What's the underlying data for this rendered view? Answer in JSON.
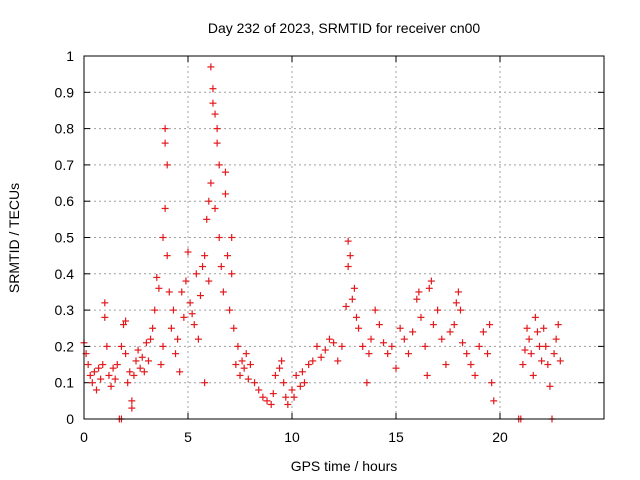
{
  "chart_data": {
    "type": "scatter",
    "title": "Day 232 of 2023, SRMTID for receiver cn00",
    "xlabel": "GPS time / hours",
    "ylabel": "SRMTID / TECUs",
    "xlim": [
      0,
      25
    ],
    "ylim": [
      0,
      1
    ],
    "xticks": [
      0,
      5,
      10,
      15,
      20
    ],
    "yticks": [
      0,
      0.1,
      0.2,
      0.3,
      0.4,
      0.5,
      0.6,
      0.7,
      0.8,
      0.9,
      1
    ],
    "grid": true,
    "marker": "+",
    "series_color": "#e31a1c",
    "series": [
      {
        "name": "SRMTID",
        "points": [
          [
            0.0,
            0.21
          ],
          [
            0.1,
            0.18
          ],
          [
            0.2,
            0.15
          ],
          [
            0.3,
            0.12
          ],
          [
            0.4,
            0.1
          ],
          [
            0.5,
            0.13
          ],
          [
            0.6,
            0.08
          ],
          [
            0.7,
            0.14
          ],
          [
            0.8,
            0.11
          ],
          [
            0.9,
            0.15
          ],
          [
            1.0,
            0.32
          ],
          [
            1.0,
            0.28
          ],
          [
            1.1,
            0.2
          ],
          [
            1.2,
            0.12
          ],
          [
            1.3,
            0.09
          ],
          [
            1.4,
            0.14
          ],
          [
            1.5,
            0.11
          ],
          [
            1.6,
            0.15
          ],
          [
            1.7,
            0.0
          ],
          [
            1.8,
            0.0
          ],
          [
            1.8,
            0.2
          ],
          [
            1.9,
            0.26
          ],
          [
            2.0,
            0.27
          ],
          [
            2.0,
            0.18
          ],
          [
            2.1,
            0.1
          ],
          [
            2.2,
            0.13
          ],
          [
            2.3,
            0.05
          ],
          [
            2.3,
            0.03
          ],
          [
            2.4,
            0.12
          ],
          [
            2.5,
            0.16
          ],
          [
            2.6,
            0.19
          ],
          [
            2.7,
            0.14
          ],
          [
            2.8,
            0.17
          ],
          [
            2.9,
            0.13
          ],
          [
            3.0,
            0.21
          ],
          [
            3.1,
            0.16
          ],
          [
            3.2,
            0.22
          ],
          [
            3.3,
            0.25
          ],
          [
            3.4,
            0.3
          ],
          [
            3.5,
            0.39
          ],
          [
            3.6,
            0.36
          ],
          [
            3.7,
            0.15
          ],
          [
            3.8,
            0.2
          ],
          [
            3.8,
            0.5
          ],
          [
            3.9,
            0.58
          ],
          [
            3.9,
            0.8
          ],
          [
            3.9,
            0.76
          ],
          [
            4.0,
            0.7
          ],
          [
            4.0,
            0.45
          ],
          [
            4.1,
            0.35
          ],
          [
            4.2,
            0.25
          ],
          [
            4.3,
            0.3
          ],
          [
            4.4,
            0.18
          ],
          [
            4.5,
            0.22
          ],
          [
            4.6,
            0.13
          ],
          [
            4.7,
            0.35
          ],
          [
            4.8,
            0.28
          ],
          [
            4.9,
            0.38
          ],
          [
            5.0,
            0.46
          ],
          [
            5.1,
            0.32
          ],
          [
            5.2,
            0.29
          ],
          [
            5.3,
            0.26
          ],
          [
            5.4,
            0.4
          ],
          [
            5.5,
            0.22
          ],
          [
            5.6,
            0.34
          ],
          [
            5.7,
            0.42
          ],
          [
            5.8,
            0.1
          ],
          [
            5.8,
            0.45
          ],
          [
            5.9,
            0.55
          ],
          [
            6.0,
            0.6
          ],
          [
            6.0,
            0.38
          ],
          [
            6.1,
            0.65
          ],
          [
            6.1,
            0.97
          ],
          [
            6.2,
            0.91
          ],
          [
            6.2,
            0.87
          ],
          [
            6.3,
            0.84
          ],
          [
            6.3,
            0.58
          ],
          [
            6.4,
            0.8
          ],
          [
            6.4,
            0.76
          ],
          [
            6.5,
            0.7
          ],
          [
            6.5,
            0.5
          ],
          [
            6.6,
            0.42
          ],
          [
            6.7,
            0.35
          ],
          [
            6.8,
            0.62
          ],
          [
            6.8,
            0.68
          ],
          [
            6.9,
            0.45
          ],
          [
            7.0,
            0.3
          ],
          [
            7.1,
            0.5
          ],
          [
            7.1,
            0.4
          ],
          [
            7.2,
            0.25
          ],
          [
            7.3,
            0.15
          ],
          [
            7.4,
            0.2
          ],
          [
            7.5,
            0.12
          ],
          [
            7.6,
            0.16
          ],
          [
            7.7,
            0.14
          ],
          [
            7.8,
            0.18
          ],
          [
            7.9,
            0.11
          ],
          [
            8.0,
            0.15
          ],
          [
            8.2,
            0.1
          ],
          [
            8.4,
            0.08
          ],
          [
            8.6,
            0.06
          ],
          [
            8.8,
            0.05
          ],
          [
            9.0,
            0.04
          ],
          [
            9.1,
            0.07
          ],
          [
            9.2,
            0.12
          ],
          [
            9.4,
            0.14
          ],
          [
            9.5,
            0.16
          ],
          [
            9.6,
            0.1
          ],
          [
            9.7,
            0.06
          ],
          [
            9.8,
            0.04
          ],
          [
            10.0,
            0.08
          ],
          [
            10.1,
            0.06
          ],
          [
            10.2,
            0.12
          ],
          [
            10.4,
            0.09
          ],
          [
            10.5,
            0.13
          ],
          [
            10.6,
            0.1
          ],
          [
            10.8,
            0.15
          ],
          [
            11.0,
            0.16
          ],
          [
            11.2,
            0.2
          ],
          [
            11.4,
            0.17
          ],
          [
            11.6,
            0.19
          ],
          [
            11.8,
            0.22
          ],
          [
            12.0,
            0.21
          ],
          [
            12.2,
            0.16
          ],
          [
            12.4,
            0.2
          ],
          [
            12.6,
            0.31
          ],
          [
            12.7,
            0.42
          ],
          [
            12.7,
            0.49
          ],
          [
            12.8,
            0.45
          ],
          [
            12.9,
            0.33
          ],
          [
            13.0,
            0.36
          ],
          [
            13.1,
            0.28
          ],
          [
            13.2,
            0.25
          ],
          [
            13.4,
            0.2
          ],
          [
            13.6,
            0.1
          ],
          [
            13.7,
            0.18
          ],
          [
            13.8,
            0.22
          ],
          [
            14.0,
            0.3
          ],
          [
            14.2,
            0.26
          ],
          [
            14.4,
            0.21
          ],
          [
            14.6,
            0.18
          ],
          [
            14.8,
            0.2
          ],
          [
            15.0,
            0.14
          ],
          [
            15.2,
            0.25
          ],
          [
            15.4,
            0.22
          ],
          [
            15.6,
            0.18
          ],
          [
            15.8,
            0.24
          ],
          [
            16.0,
            0.33
          ],
          [
            16.1,
            0.35
          ],
          [
            16.2,
            0.28
          ],
          [
            16.4,
            0.2
          ],
          [
            16.5,
            0.12
          ],
          [
            16.6,
            0.36
          ],
          [
            16.7,
            0.38
          ],
          [
            16.8,
            0.26
          ],
          [
            17.0,
            0.3
          ],
          [
            17.2,
            0.22
          ],
          [
            17.4,
            0.15
          ],
          [
            17.6,
            0.24
          ],
          [
            17.8,
            0.26
          ],
          [
            17.9,
            0.32
          ],
          [
            18.0,
            0.35
          ],
          [
            18.1,
            0.3
          ],
          [
            18.2,
            0.21
          ],
          [
            18.4,
            0.18
          ],
          [
            18.6,
            0.15
          ],
          [
            18.8,
            0.12
          ],
          [
            19.0,
            0.2
          ],
          [
            19.2,
            0.24
          ],
          [
            19.4,
            0.18
          ],
          [
            19.5,
            0.26
          ],
          [
            19.6,
            0.1
          ],
          [
            19.7,
            0.05
          ],
          [
            20.9,
            0.0
          ],
          [
            21.0,
            0.0
          ],
          [
            21.1,
            0.15
          ],
          [
            21.2,
            0.19
          ],
          [
            21.3,
            0.25
          ],
          [
            21.4,
            0.22
          ],
          [
            21.5,
            0.18
          ],
          [
            21.6,
            0.12
          ],
          [
            21.7,
            0.28
          ],
          [
            21.8,
            0.24
          ],
          [
            21.9,
            0.2
          ],
          [
            22.0,
            0.16
          ],
          [
            22.1,
            0.25
          ],
          [
            22.2,
            0.2
          ],
          [
            22.3,
            0.15
          ],
          [
            22.4,
            0.09
          ],
          [
            22.5,
            0.0
          ],
          [
            22.6,
            0.18
          ],
          [
            22.7,
            0.22
          ],
          [
            22.8,
            0.26
          ],
          [
            22.9,
            0.16
          ]
        ]
      }
    ]
  }
}
